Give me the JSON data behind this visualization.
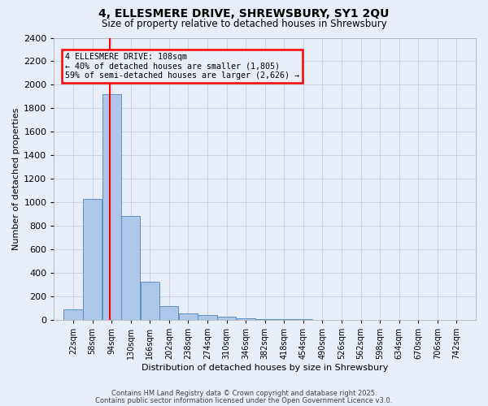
{
  "title": "4, ELLESMERE DRIVE, SHREWSBURY, SY1 2QU",
  "subtitle": "Size of property relative to detached houses in Shrewsbury",
  "xlabel": "Distribution of detached houses by size in Shrewsbury",
  "ylabel": "Number of detached properties",
  "bin_labels": [
    "22sqm",
    "58sqm",
    "94sqm",
    "130sqm",
    "166sqm",
    "202sqm",
    "238sqm",
    "274sqm",
    "310sqm",
    "346sqm",
    "382sqm",
    "418sqm",
    "454sqm",
    "490sqm",
    "526sqm",
    "562sqm",
    "598sqm",
    "634sqm",
    "670sqm",
    "706sqm",
    "742sqm"
  ],
  "bin_left_edges": [
    22,
    58,
    94,
    130,
    166,
    202,
    238,
    274,
    310,
    346,
    382,
    418,
    454,
    490,
    526,
    562,
    598,
    634,
    670,
    706,
    742
  ],
  "bar_heights": [
    90,
    1030,
    1920,
    880,
    320,
    115,
    55,
    40,
    25,
    10,
    5,
    2,
    1,
    0,
    0,
    0,
    0,
    0,
    0,
    0,
    0
  ],
  "bar_color": "#aec6e8",
  "bar_edge_color": "#5a8fc0",
  "property_size": 108,
  "vline_color": "red",
  "annotation_title": "4 ELLESMERE DRIVE: 108sqm",
  "annotation_line1": "← 40% of detached houses are smaller (1,805)",
  "annotation_line2": "59% of semi-detached houses are larger (2,626) →",
  "annotation_box_color": "red",
  "ylim": [
    0,
    2400
  ],
  "yticks": [
    0,
    200,
    400,
    600,
    800,
    1000,
    1200,
    1400,
    1600,
    1800,
    2000,
    2200,
    2400
  ],
  "grid_color": "#c8d4e8",
  "bg_color": "#e8eef8",
  "footer1": "Contains HM Land Registry data © Crown copyright and database right 2025.",
  "footer2": "Contains public sector information licensed under the Open Government Licence v3.0."
}
